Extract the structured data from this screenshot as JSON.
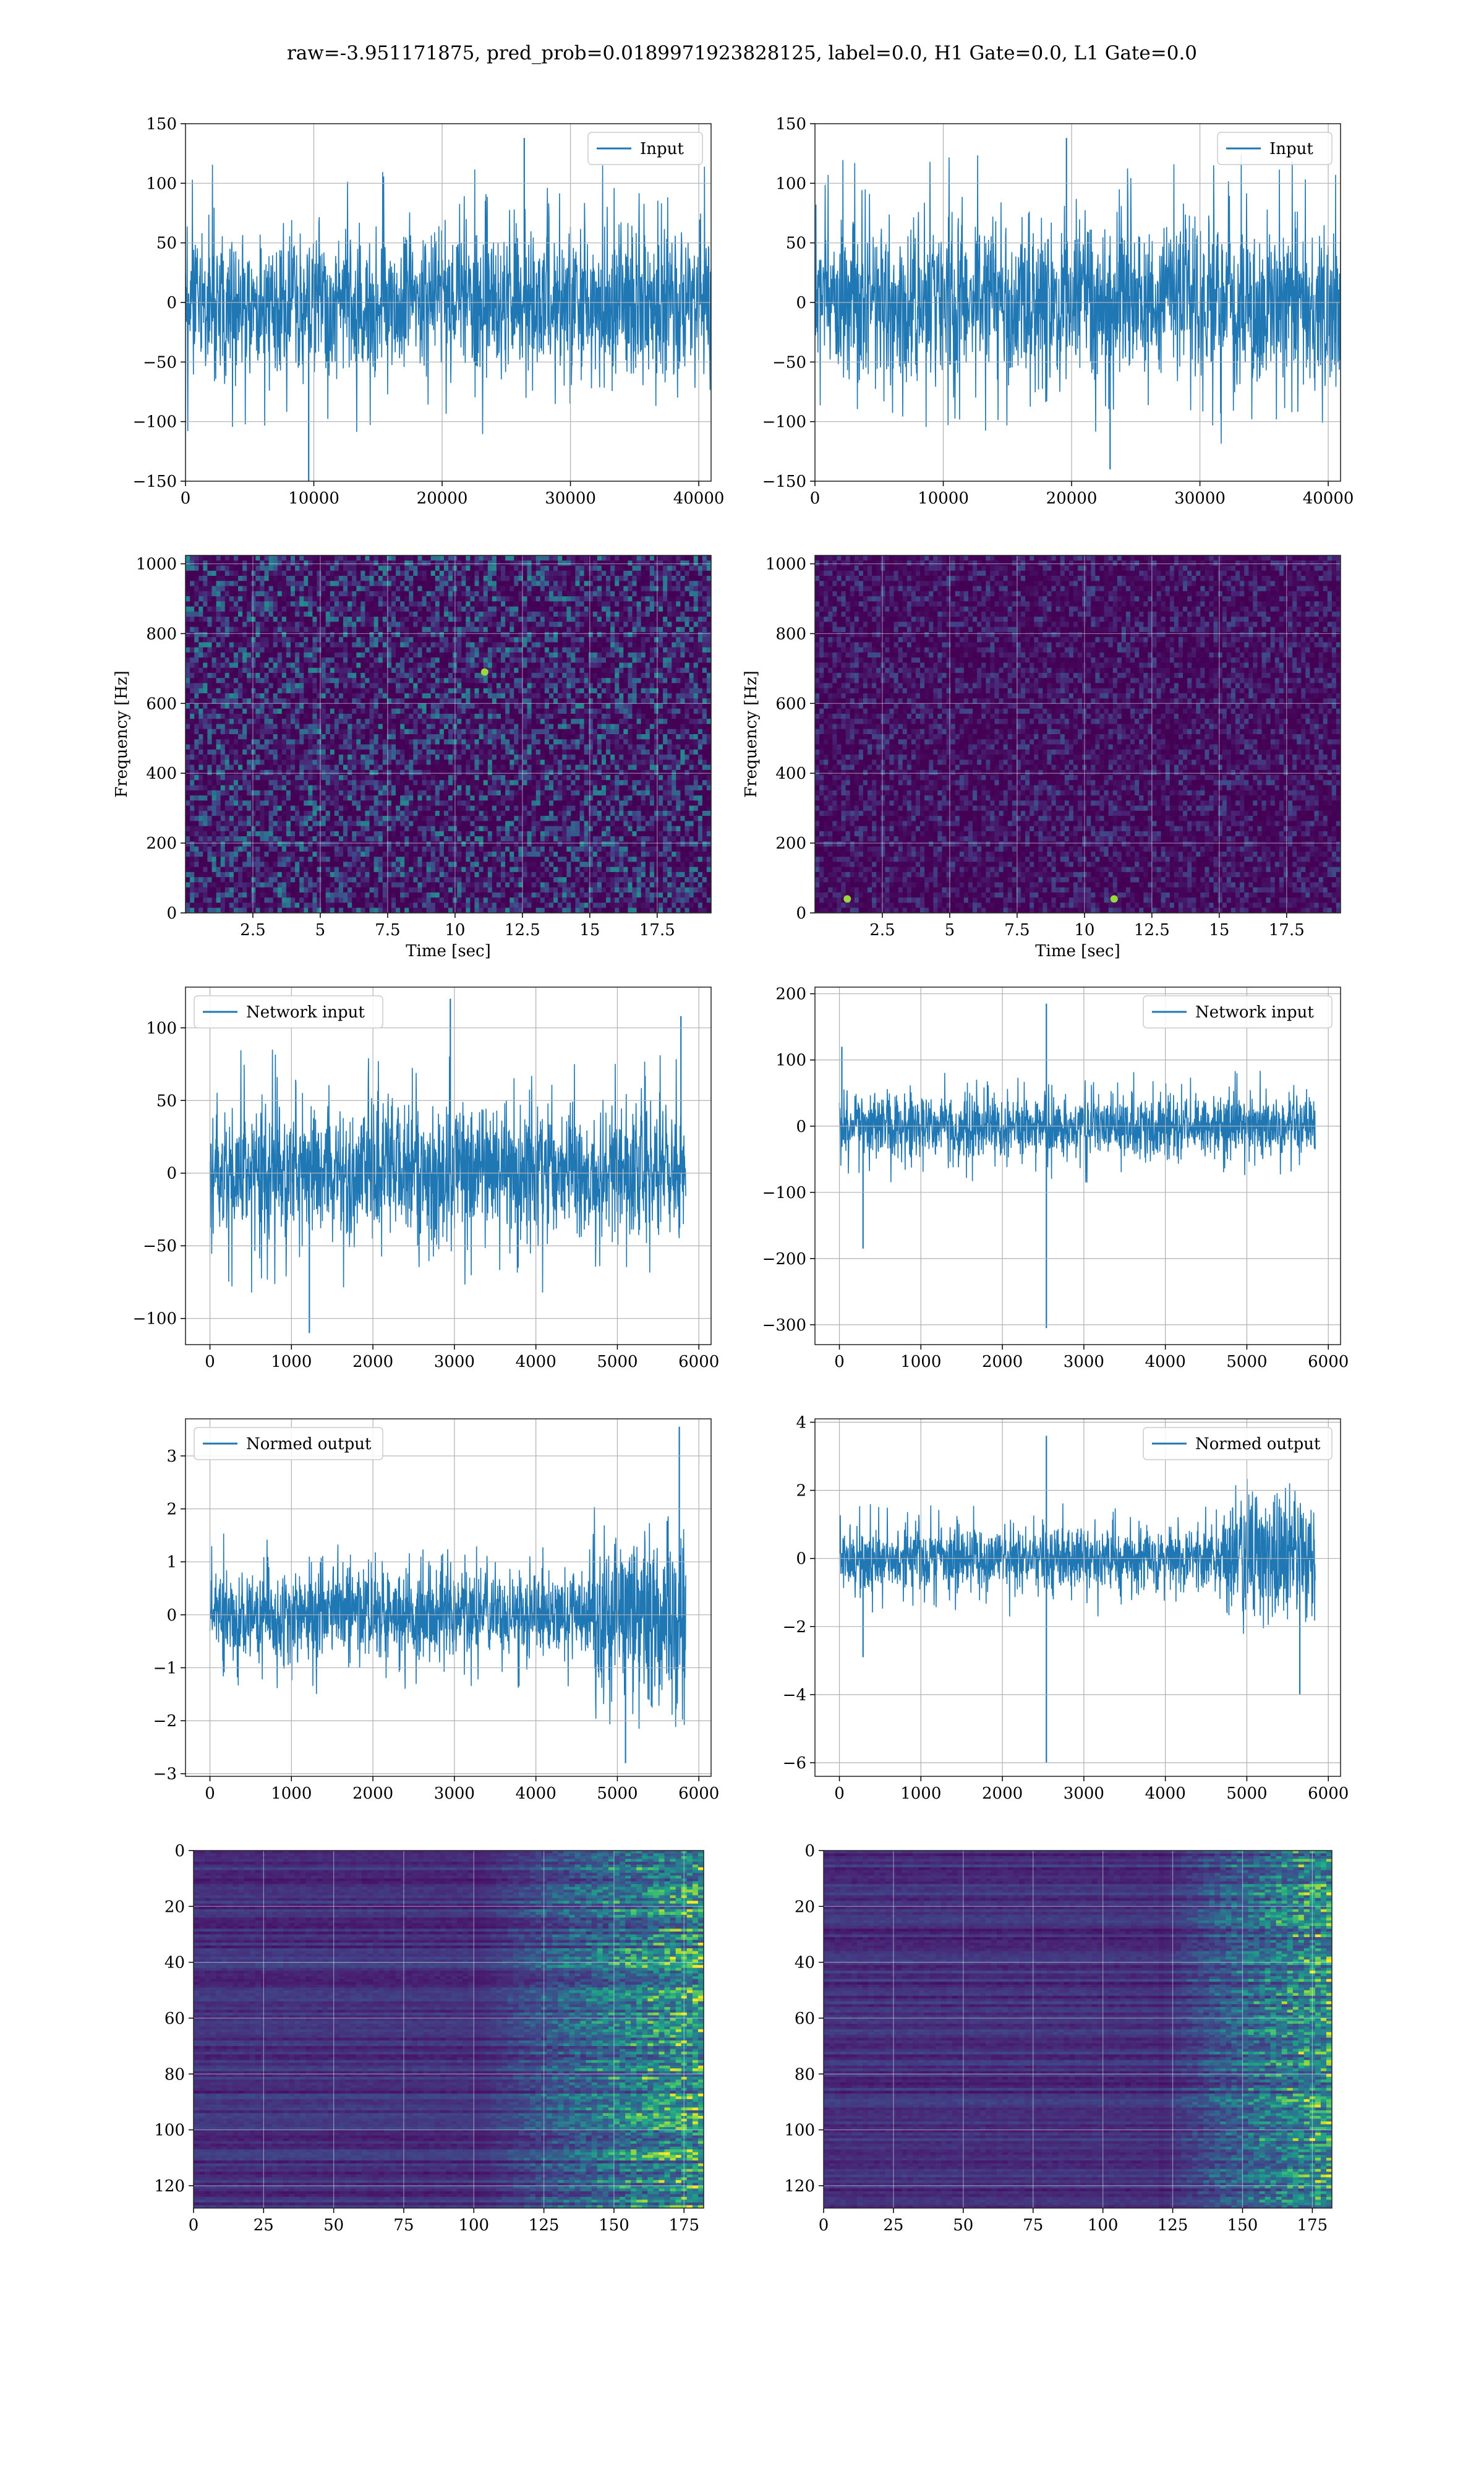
{
  "figure": {
    "title": "raw=-3.951171875, pred_prob=0.0189971923828125, label=0.0, H1 Gate=0.0, L1 Gate=0.0"
  },
  "chart_data": [
    {
      "id": "input-left",
      "type": "line",
      "legend": "Input",
      "legend_loc": "top-right",
      "xlim": [
        0,
        40960
      ],
      "ylim": [
        -150,
        150
      ],
      "xticks": [
        0,
        10000,
        20000,
        30000,
        40000
      ],
      "yticks": [
        -150,
        -100,
        -50,
        0,
        50,
        100,
        150
      ],
      "xlabel": "",
      "ylabel": "",
      "grid": true,
      "color": "#1f77b4",
      "signal": {
        "n": 40960,
        "typical_band": [
          -75,
          75
        ],
        "extremes": [
          [
            9600,
            -155
          ],
          [
            26400,
            138
          ]
        ]
      }
    },
    {
      "id": "input-right",
      "type": "line",
      "legend": "Input",
      "legend_loc": "top-right",
      "xlim": [
        0,
        40960
      ],
      "ylim": [
        -150,
        150
      ],
      "xticks": [
        0,
        10000,
        20000,
        30000,
        40000
      ],
      "yticks": [
        -150,
        -100,
        -50,
        0,
        50,
        100,
        150
      ],
      "xlabel": "",
      "ylabel": "",
      "grid": true,
      "color": "#1f77b4",
      "signal": {
        "n": 40960,
        "typical_band": [
          -80,
          80
        ],
        "extremes": [
          [
            23000,
            -140
          ],
          [
            19600,
            138
          ]
        ]
      }
    },
    {
      "id": "spectrogram-left",
      "type": "heatmap",
      "colormap": "viridis",
      "xlim": [
        0,
        19.5
      ],
      "ylim": [
        0,
        1024
      ],
      "xticks": [
        2.5,
        5.0,
        7.5,
        10.0,
        12.5,
        15.0,
        17.5
      ],
      "yticks": [
        0,
        200,
        400,
        600,
        800,
        1000
      ],
      "xlabel": "Time [sec]",
      "ylabel": "Frequency [Hz]",
      "grid": true,
      "intensity": 0.3,
      "hotspots": [
        [
          11.1,
          690
        ]
      ]
    },
    {
      "id": "spectrogram-right",
      "type": "heatmap",
      "colormap": "viridis",
      "xlim": [
        0,
        19.5
      ],
      "ylim": [
        0,
        1024
      ],
      "xticks": [
        2.5,
        5.0,
        7.5,
        10.0,
        12.5,
        15.0,
        17.5
      ],
      "yticks": [
        0,
        200,
        400,
        600,
        800,
        1000
      ],
      "xlabel": "Time [sec]",
      "ylabel": "Frequency [Hz]",
      "grid": true,
      "intensity": 0.15,
      "hotspots": [
        [
          11.1,
          40
        ],
        [
          1.2,
          40
        ]
      ]
    },
    {
      "id": "network-input-left",
      "type": "line",
      "legend": "Network input",
      "legend_loc": "top-left",
      "xlim": [
        -300,
        6150
      ],
      "ylim": [
        -118,
        128
      ],
      "xticks": [
        0,
        1000,
        2000,
        3000,
        4000,
        5000,
        6000
      ],
      "yticks": [
        -100,
        -50,
        0,
        50,
        100
      ],
      "xlabel": "",
      "ylabel": "",
      "grid": true,
      "color": "#1f77b4",
      "signal": {
        "n": 5840,
        "typical_band": [
          -55,
          55
        ],
        "extremes": [
          [
            2950,
            120
          ],
          [
            1220,
            -110
          ],
          [
            5780,
            108
          ]
        ]
      }
    },
    {
      "id": "network-input-right",
      "type": "line",
      "legend": "Network input",
      "legend_loc": "top-right",
      "xlim": [
        -300,
        6150
      ],
      "ylim": [
        -330,
        210
      ],
      "xticks": [
        0,
        1000,
        2000,
        3000,
        4000,
        5000,
        6000
      ],
      "yticks": [
        -300,
        -200,
        -100,
        0,
        100,
        200
      ],
      "xlabel": "",
      "ylabel": "",
      "grid": true,
      "color": "#1f77b4",
      "signal": {
        "n": 5840,
        "typical_band": [
          -55,
          55
        ],
        "extremes": [
          [
            2540,
            -305
          ],
          [
            2540,
            185
          ],
          [
            290,
            -185
          ],
          [
            30,
            120
          ]
        ]
      }
    },
    {
      "id": "normed-output-left",
      "type": "line",
      "legend": "Normed output",
      "legend_loc": "top-left",
      "xlim": [
        -300,
        6150
      ],
      "ylim": [
        -3.05,
        3.7
      ],
      "xticks": [
        0,
        1000,
        2000,
        3000,
        4000,
        5000,
        6000
      ],
      "yticks": [
        -3,
        -2,
        -1,
        0,
        1,
        2,
        3
      ],
      "xlabel": "",
      "ylabel": "",
      "grid": true,
      "color": "#1f77b4",
      "signal": {
        "n": 5840,
        "typical_band": [
          -1.0,
          1.0
        ],
        "burst": [
          4700,
          5840,
          2.0
        ],
        "extremes": [
          [
            5760,
            3.55
          ],
          [
            5100,
            -2.8
          ]
        ]
      }
    },
    {
      "id": "normed-output-right",
      "type": "line",
      "legend": "Normed output",
      "legend_loc": "top-right",
      "xlim": [
        -300,
        6150
      ],
      "ylim": [
        -6.4,
        4.1
      ],
      "xticks": [
        0,
        1000,
        2000,
        3000,
        4000,
        5000,
        6000
      ],
      "yticks": [
        -6,
        -4,
        -2,
        0,
        2,
        4
      ],
      "xlabel": "",
      "ylabel": "",
      "grid": true,
      "color": "#1f77b4",
      "signal": {
        "n": 5840,
        "typical_band": [
          -1.1,
          1.1
        ],
        "burst": [
          4700,
          5840,
          2.0
        ],
        "extremes": [
          [
            2540,
            -6.0
          ],
          [
            2540,
            3.6
          ],
          [
            290,
            -2.9
          ],
          [
            5650,
            -4.0
          ]
        ]
      }
    },
    {
      "id": "feature-map-left",
      "type": "heatmap",
      "colormap": "viridis",
      "xlim": [
        0,
        182
      ],
      "ylim": [
        128,
        0
      ],
      "xticks": [
        0,
        25,
        50,
        75,
        100,
        125,
        150,
        175
      ],
      "yticks": [
        0,
        20,
        40,
        60,
        80,
        100,
        120
      ],
      "xlabel": "",
      "ylabel": "",
      "grid": true,
      "columns": 182,
      "rows": 128,
      "activation_start": 100
    },
    {
      "id": "feature-map-right",
      "type": "heatmap",
      "colormap": "viridis",
      "xlim": [
        0,
        182
      ],
      "ylim": [
        128,
        0
      ],
      "xticks": [
        0,
        25,
        50,
        75,
        100,
        125,
        150,
        175
      ],
      "yticks": [
        0,
        20,
        40,
        60,
        80,
        100,
        120
      ],
      "xlabel": "",
      "ylabel": "",
      "grid": true,
      "columns": 182,
      "rows": 128,
      "activation_start": 120
    }
  ]
}
